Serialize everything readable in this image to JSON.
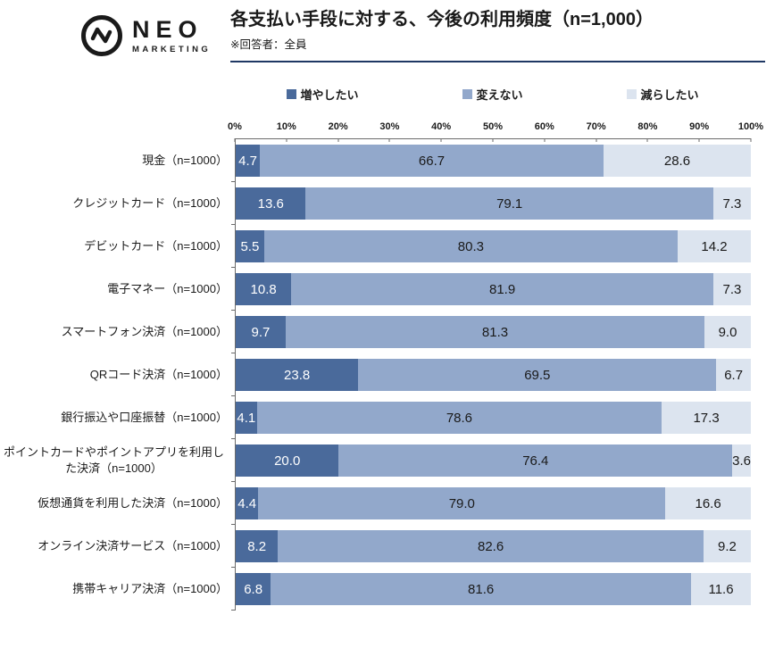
{
  "logo": {
    "name": "NEO",
    "tagline": "MARKETING"
  },
  "header": {
    "title": "各支払い手段に対する、今後の利用頻度（n=1,000）",
    "subtitle": "※回答者：全員",
    "divider_color": "#1f3864"
  },
  "chart_data": {
    "type": "bar",
    "stacked": true,
    "orientation": "horizontal",
    "title": "各支払い手段に対する、今後の利用頻度（n=1,000）",
    "legend_position": "top",
    "xlim": [
      0,
      100
    ],
    "x_ticks": [
      "0%",
      "10%",
      "20%",
      "30%",
      "40%",
      "50%",
      "60%",
      "70%",
      "80%",
      "90%",
      "100%"
    ],
    "categories": [
      "現金（n=1000）",
      "クレジットカード（n=1000）",
      "デビットカード（n=1000）",
      "電子マネー（n=1000）",
      "スマートフォン決済（n=1000）",
      "QRコード決済（n=1000）",
      "銀行振込や口座振替（n=1000）",
      "ポイントカードやポイントアプリを利用した決済（n=1000）",
      "仮想通貨を利用した決済（n=1000）",
      "オンライン決済サービス（n=1000）",
      "携帯キャリア決済（n=1000）"
    ],
    "series": [
      {
        "name": "増やしたい",
        "color": "#4a6a9b",
        "label_color": "#ffffff",
        "values": [
          4.7,
          13.6,
          5.5,
          10.8,
          9.7,
          23.8,
          4.1,
          20.0,
          4.4,
          8.2,
          6.8
        ]
      },
      {
        "name": "変えない",
        "color": "#92a8cb",
        "label_color": "#1a1a1a",
        "values": [
          66.7,
          79.1,
          80.3,
          81.9,
          81.3,
          69.5,
          78.6,
          76.4,
          79.0,
          82.6,
          81.6
        ]
      },
      {
        "name": "減らしたい",
        "color": "#dce4ef",
        "label_color": "#1a1a1a",
        "values": [
          28.6,
          7.3,
          14.2,
          7.3,
          9.0,
          6.7,
          17.3,
          3.6,
          16.6,
          9.2,
          11.6
        ]
      }
    ]
  }
}
